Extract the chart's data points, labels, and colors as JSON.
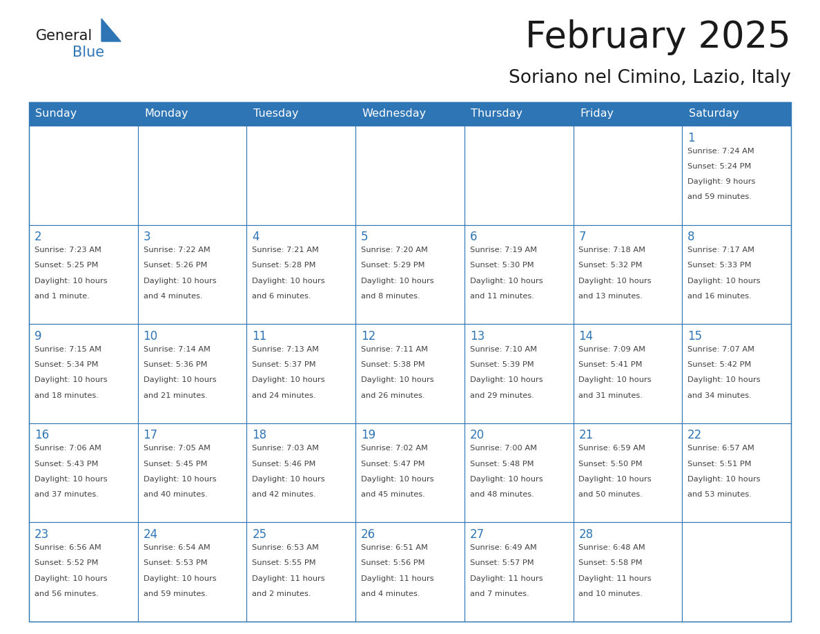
{
  "title": "February 2025",
  "subtitle": "Soriano nel Cimino, Lazio, Italy",
  "header_bg": "#2E75B6",
  "header_text_color": "#FFFFFF",
  "cell_bg": "#FFFFFF",
  "cell_alt_bg": "#F2F2F2",
  "cell_border_color": "#2E75B6",
  "day_number_color": "#2E75B6",
  "info_text_color": "#404040",
  "days_of_week": [
    "Sunday",
    "Monday",
    "Tuesday",
    "Wednesday",
    "Thursday",
    "Friday",
    "Saturday"
  ],
  "weeks": [
    [
      null,
      null,
      null,
      null,
      null,
      null,
      {
        "day": "1",
        "sunrise": "7:24 AM",
        "sunset": "5:24 PM",
        "daylight": "9 hours",
        "daylight2": "and 59 minutes."
      }
    ],
    [
      {
        "day": "2",
        "sunrise": "7:23 AM",
        "sunset": "5:25 PM",
        "daylight": "10 hours",
        "daylight2": "and 1 minute."
      },
      {
        "day": "3",
        "sunrise": "7:22 AM",
        "sunset": "5:26 PM",
        "daylight": "10 hours",
        "daylight2": "and 4 minutes."
      },
      {
        "day": "4",
        "sunrise": "7:21 AM",
        "sunset": "5:28 PM",
        "daylight": "10 hours",
        "daylight2": "and 6 minutes."
      },
      {
        "day": "5",
        "sunrise": "7:20 AM",
        "sunset": "5:29 PM",
        "daylight": "10 hours",
        "daylight2": "and 8 minutes."
      },
      {
        "day": "6",
        "sunrise": "7:19 AM",
        "sunset": "5:30 PM",
        "daylight": "10 hours",
        "daylight2": "and 11 minutes."
      },
      {
        "day": "7",
        "sunrise": "7:18 AM",
        "sunset": "5:32 PM",
        "daylight": "10 hours",
        "daylight2": "and 13 minutes."
      },
      {
        "day": "8",
        "sunrise": "7:17 AM",
        "sunset": "5:33 PM",
        "daylight": "10 hours",
        "daylight2": "and 16 minutes."
      }
    ],
    [
      {
        "day": "9",
        "sunrise": "7:15 AM",
        "sunset": "5:34 PM",
        "daylight": "10 hours",
        "daylight2": "and 18 minutes."
      },
      {
        "day": "10",
        "sunrise": "7:14 AM",
        "sunset": "5:36 PM",
        "daylight": "10 hours",
        "daylight2": "and 21 minutes."
      },
      {
        "day": "11",
        "sunrise": "7:13 AM",
        "sunset": "5:37 PM",
        "daylight": "10 hours",
        "daylight2": "and 24 minutes."
      },
      {
        "day": "12",
        "sunrise": "7:11 AM",
        "sunset": "5:38 PM",
        "daylight": "10 hours",
        "daylight2": "and 26 minutes."
      },
      {
        "day": "13",
        "sunrise": "7:10 AM",
        "sunset": "5:39 PM",
        "daylight": "10 hours",
        "daylight2": "and 29 minutes."
      },
      {
        "day": "14",
        "sunrise": "7:09 AM",
        "sunset": "5:41 PM",
        "daylight": "10 hours",
        "daylight2": "and 31 minutes."
      },
      {
        "day": "15",
        "sunrise": "7:07 AM",
        "sunset": "5:42 PM",
        "daylight": "10 hours",
        "daylight2": "and 34 minutes."
      }
    ],
    [
      {
        "day": "16",
        "sunrise": "7:06 AM",
        "sunset": "5:43 PM",
        "daylight": "10 hours",
        "daylight2": "and 37 minutes."
      },
      {
        "day": "17",
        "sunrise": "7:05 AM",
        "sunset": "5:45 PM",
        "daylight": "10 hours",
        "daylight2": "and 40 minutes."
      },
      {
        "day": "18",
        "sunrise": "7:03 AM",
        "sunset": "5:46 PM",
        "daylight": "10 hours",
        "daylight2": "and 42 minutes."
      },
      {
        "day": "19",
        "sunrise": "7:02 AM",
        "sunset": "5:47 PM",
        "daylight": "10 hours",
        "daylight2": "and 45 minutes."
      },
      {
        "day": "20",
        "sunrise": "7:00 AM",
        "sunset": "5:48 PM",
        "daylight": "10 hours",
        "daylight2": "and 48 minutes."
      },
      {
        "day": "21",
        "sunrise": "6:59 AM",
        "sunset": "5:50 PM",
        "daylight": "10 hours",
        "daylight2": "and 50 minutes."
      },
      {
        "day": "22",
        "sunrise": "6:57 AM",
        "sunset": "5:51 PM",
        "daylight": "10 hours",
        "daylight2": "and 53 minutes."
      }
    ],
    [
      {
        "day": "23",
        "sunrise": "6:56 AM",
        "sunset": "5:52 PM",
        "daylight": "10 hours",
        "daylight2": "and 56 minutes."
      },
      {
        "day": "24",
        "sunrise": "6:54 AM",
        "sunset": "5:53 PM",
        "daylight": "10 hours",
        "daylight2": "and 59 minutes."
      },
      {
        "day": "25",
        "sunrise": "6:53 AM",
        "sunset": "5:55 PM",
        "daylight": "11 hours",
        "daylight2": "and 2 minutes."
      },
      {
        "day": "26",
        "sunrise": "6:51 AM",
        "sunset": "5:56 PM",
        "daylight": "11 hours",
        "daylight2": "and 4 minutes."
      },
      {
        "day": "27",
        "sunrise": "6:49 AM",
        "sunset": "5:57 PM",
        "daylight": "11 hours",
        "daylight2": "and 7 minutes."
      },
      {
        "day": "28",
        "sunrise": "6:48 AM",
        "sunset": "5:58 PM",
        "daylight": "11 hours",
        "daylight2": "and 10 minutes."
      },
      null
    ]
  ],
  "logo_text_general": "General",
  "logo_text_blue": "Blue",
  "logo_triangle_color": "#2E75B6",
  "logo_general_color": "#1a1a1a"
}
